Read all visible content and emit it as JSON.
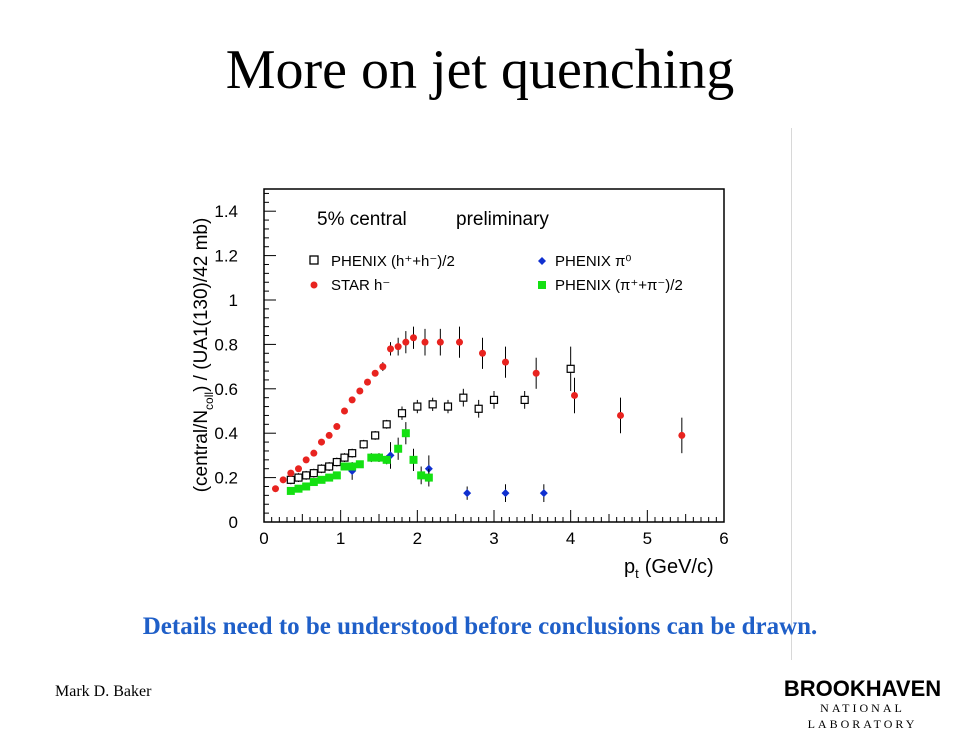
{
  "slide": {
    "title": "More on jet quenching",
    "caption": "Details need to be understood before conclusions can be drawn.",
    "author": "Mark D. Baker",
    "logo_name": "BROOKHAVEN",
    "logo_sub": "NATIONAL LABORATORY",
    "caption_color": "#1f5fc8"
  },
  "chart_data": {
    "type": "scatter",
    "annotation": "5% central",
    "annotation2": "preliminary",
    "xlabel_main": "p",
    "xlabel_sub": "t",
    "xlabel_unit": "(GeV/c)",
    "ylabel_pre": "(central/N",
    "ylabel_sub": "coll",
    "ylabel_post": ") / (UA1(130)/42 mb)",
    "xlim": [
      0,
      6
    ],
    "ylim": [
      0,
      1.5
    ],
    "x_ticks": [
      0,
      1,
      2,
      3,
      4,
      5,
      6
    ],
    "y_ticks": [
      0,
      0.2,
      0.4,
      0.6,
      0.8,
      1,
      1.2,
      1.4
    ],
    "grid": false,
    "legend_position": "top",
    "series": [
      {
        "name": "PHENIX (h⁺+h⁻)/2",
        "marker": "open-square",
        "color": "#000000",
        "points": [
          {
            "x": 0.35,
            "y": 0.19,
            "err": 0.02
          },
          {
            "x": 0.45,
            "y": 0.2,
            "err": 0.02
          },
          {
            "x": 0.55,
            "y": 0.21,
            "err": 0.02
          },
          {
            "x": 0.65,
            "y": 0.22,
            "err": 0.02
          },
          {
            "x": 0.75,
            "y": 0.24,
            "err": 0.02
          },
          {
            "x": 0.85,
            "y": 0.25,
            "err": 0.02
          },
          {
            "x": 0.95,
            "y": 0.27,
            "err": 0.02
          },
          {
            "x": 1.05,
            "y": 0.29,
            "err": 0.02
          },
          {
            "x": 1.15,
            "y": 0.31,
            "err": 0.02
          },
          {
            "x": 1.3,
            "y": 0.35,
            "err": 0.02
          },
          {
            "x": 1.45,
            "y": 0.39,
            "err": 0.02
          },
          {
            "x": 1.6,
            "y": 0.44,
            "err": 0.02
          },
          {
            "x": 1.8,
            "y": 0.49,
            "err": 0.03
          },
          {
            "x": 2.0,
            "y": 0.52,
            "err": 0.03
          },
          {
            "x": 2.2,
            "y": 0.53,
            "err": 0.03
          },
          {
            "x": 2.4,
            "y": 0.52,
            "err": 0.03
          },
          {
            "x": 2.6,
            "y": 0.56,
            "err": 0.04
          },
          {
            "x": 2.8,
            "y": 0.51,
            "err": 0.04
          },
          {
            "x": 3.0,
            "y": 0.55,
            "err": 0.04
          },
          {
            "x": 3.4,
            "y": 0.55,
            "err": 0.04
          },
          {
            "x": 4.0,
            "y": 0.69,
            "err": 0.1
          }
        ]
      },
      {
        "name": "STAR h⁻",
        "marker": "filled-circle",
        "color": "#e8231f",
        "points": [
          {
            "x": 0.15,
            "y": 0.15,
            "err": 0
          },
          {
            "x": 0.25,
            "y": 0.19,
            "err": 0
          },
          {
            "x": 0.35,
            "y": 0.22,
            "err": 0
          },
          {
            "x": 0.45,
            "y": 0.24,
            "err": 0
          },
          {
            "x": 0.55,
            "y": 0.28,
            "err": 0
          },
          {
            "x": 0.65,
            "y": 0.31,
            "err": 0
          },
          {
            "x": 0.75,
            "y": 0.36,
            "err": 0
          },
          {
            "x": 0.85,
            "y": 0.39,
            "err": 0
          },
          {
            "x": 0.95,
            "y": 0.43,
            "err": 0
          },
          {
            "x": 1.05,
            "y": 0.5,
            "err": 0
          },
          {
            "x": 1.15,
            "y": 0.55,
            "err": 0
          },
          {
            "x": 1.25,
            "y": 0.59,
            "err": 0
          },
          {
            "x": 1.35,
            "y": 0.63,
            "err": 0
          },
          {
            "x": 1.45,
            "y": 0.67,
            "err": 0
          },
          {
            "x": 1.55,
            "y": 0.7,
            "err": 0.02
          },
          {
            "x": 1.65,
            "y": 0.78,
            "err": 0.03
          },
          {
            "x": 1.75,
            "y": 0.79,
            "err": 0.04
          },
          {
            "x": 1.85,
            "y": 0.81,
            "err": 0.05
          },
          {
            "x": 1.95,
            "y": 0.83,
            "err": 0.05
          },
          {
            "x": 2.1,
            "y": 0.81,
            "err": 0.06
          },
          {
            "x": 2.3,
            "y": 0.81,
            "err": 0.06
          },
          {
            "x": 2.55,
            "y": 0.81,
            "err": 0.07
          },
          {
            "x": 2.85,
            "y": 0.76,
            "err": 0.07
          },
          {
            "x": 3.15,
            "y": 0.72,
            "err": 0.07
          },
          {
            "x": 3.55,
            "y": 0.67,
            "err": 0.07
          },
          {
            "x": 4.05,
            "y": 0.57,
            "err": 0.08
          },
          {
            "x": 4.65,
            "y": 0.48,
            "err": 0.08
          },
          {
            "x": 5.45,
            "y": 0.39,
            "err": 0.08
          }
        ]
      },
      {
        "name": "PHENIX π⁰",
        "marker": "filled-diamond",
        "color": "#1030d0",
        "points": [
          {
            "x": 1.15,
            "y": 0.23,
            "err": 0.04
          },
          {
            "x": 1.65,
            "y": 0.3,
            "err": 0.06
          },
          {
            "x": 2.15,
            "y": 0.24,
            "err": 0.06
          },
          {
            "x": 2.65,
            "y": 0.13,
            "err": 0.03
          },
          {
            "x": 3.15,
            "y": 0.13,
            "err": 0.04
          },
          {
            "x": 3.65,
            "y": 0.13,
            "err": 0.04
          }
        ]
      },
      {
        "name": "PHENIX (π⁺+π⁻)/2",
        "marker": "filled-square",
        "color": "#14e012",
        "points": [
          {
            "x": 0.35,
            "y": 0.14,
            "err": 0
          },
          {
            "x": 0.45,
            "y": 0.15,
            "err": 0
          },
          {
            "x": 0.55,
            "y": 0.16,
            "err": 0
          },
          {
            "x": 0.65,
            "y": 0.18,
            "err": 0
          },
          {
            "x": 0.75,
            "y": 0.19,
            "err": 0
          },
          {
            "x": 0.85,
            "y": 0.2,
            "err": 0
          },
          {
            "x": 0.95,
            "y": 0.21,
            "err": 0.01
          },
          {
            "x": 1.05,
            "y": 0.25,
            "err": 0.01
          },
          {
            "x": 1.15,
            "y": 0.25,
            "err": 0.01
          },
          {
            "x": 1.25,
            "y": 0.26,
            "err": 0.01
          },
          {
            "x": 1.4,
            "y": 0.29,
            "err": 0.02
          },
          {
            "x": 1.5,
            "y": 0.29,
            "err": 0.02
          },
          {
            "x": 1.6,
            "y": 0.28,
            "err": 0.02
          },
          {
            "x": 1.75,
            "y": 0.33,
            "err": 0.05
          },
          {
            "x": 1.85,
            "y": 0.4,
            "err": 0.05
          },
          {
            "x": 1.95,
            "y": 0.28,
            "err": 0.05
          },
          {
            "x": 2.05,
            "y": 0.21,
            "err": 0.04
          },
          {
            "x": 2.15,
            "y": 0.2,
            "err": 0.04
          }
        ]
      }
    ]
  }
}
